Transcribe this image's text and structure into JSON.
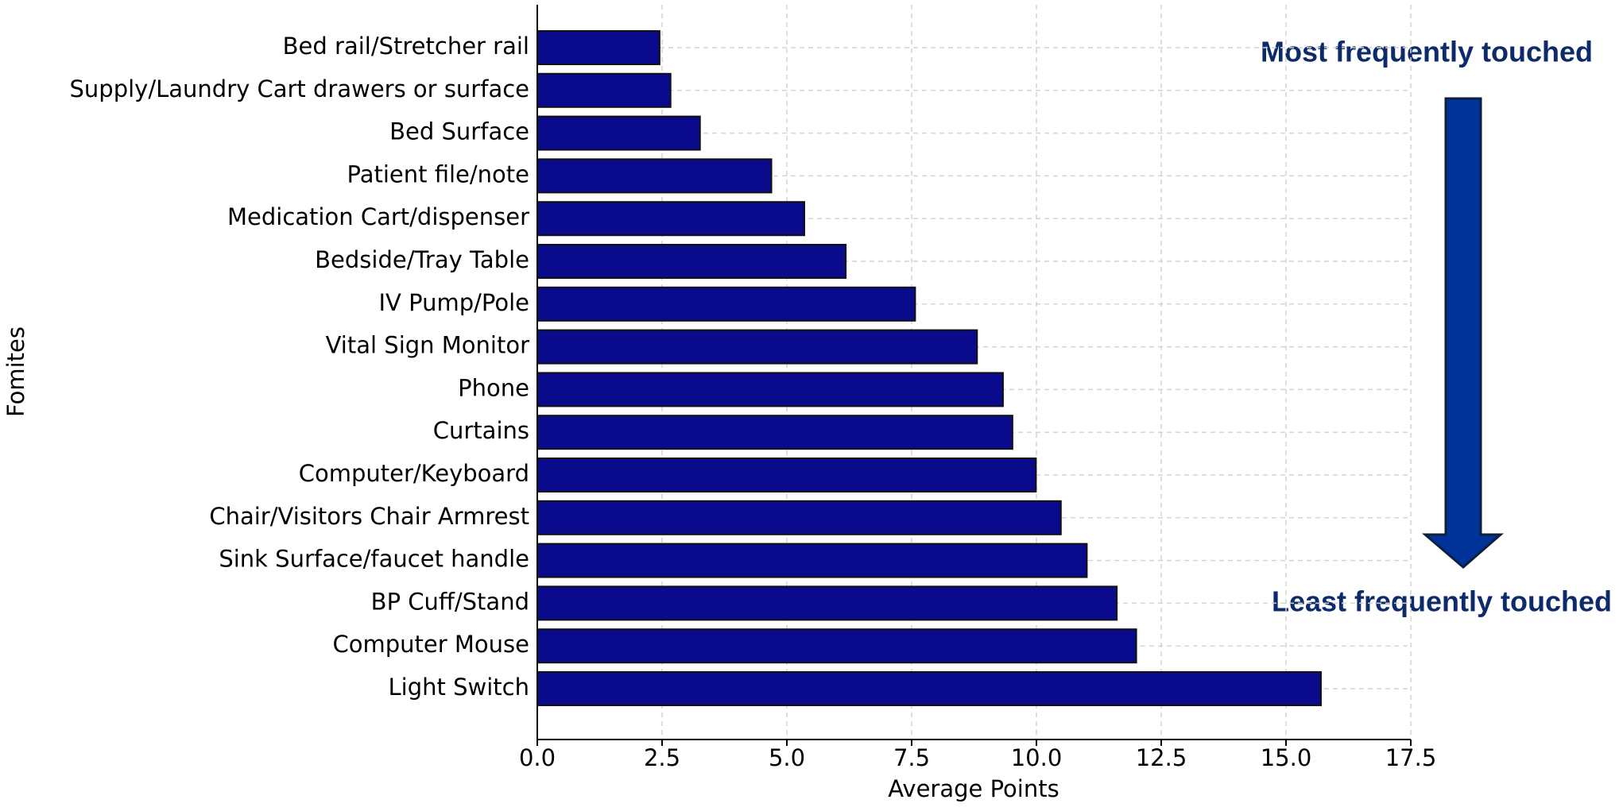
{
  "chart_data": {
    "type": "barh",
    "x_label": "Average Points",
    "y_label": "Fomites",
    "annotations": [
      "Most frequently touched",
      "Least frequently touched"
    ],
    "categories": [
      "Bed rail/Stretcher rail",
      "Supply/Laundry Cart drawers or surface",
      "Bed Surface",
      "Patient file/note",
      "Medication Cart/dispenser",
      "Bedside/Tray Table",
      "IV Pump/Pole",
      "Vital Sign Monitor",
      "Phone",
      "Curtains",
      "Computer/Keyboard",
      "Chair/Visitors Chair Armrest",
      "Sink Surface/faucet handle",
      "BP Cuff/Stand",
      "Computer Mouse",
      "Light Switch"
    ],
    "values": [
      2.45,
      2.67,
      3.26,
      4.69,
      5.35,
      6.18,
      7.57,
      8.81,
      9.33,
      9.52,
      9.99,
      10.49,
      11.01,
      11.61,
      12.0,
      15.7
    ],
    "color": "#0a0a8c",
    "xlim": [
      0,
      17.5
    ],
    "xticks": [
      {
        "value": 0,
        "label": "0.0"
      },
      2.5,
      {
        "value": 5,
        "label": "5.0"
      },
      7.5,
      {
        "value": 10,
        "label": "10.0"
      },
      12.5,
      {
        "value": 15,
        "label": "15.0"
      },
      17.5
    ],
    "grid": true
  }
}
